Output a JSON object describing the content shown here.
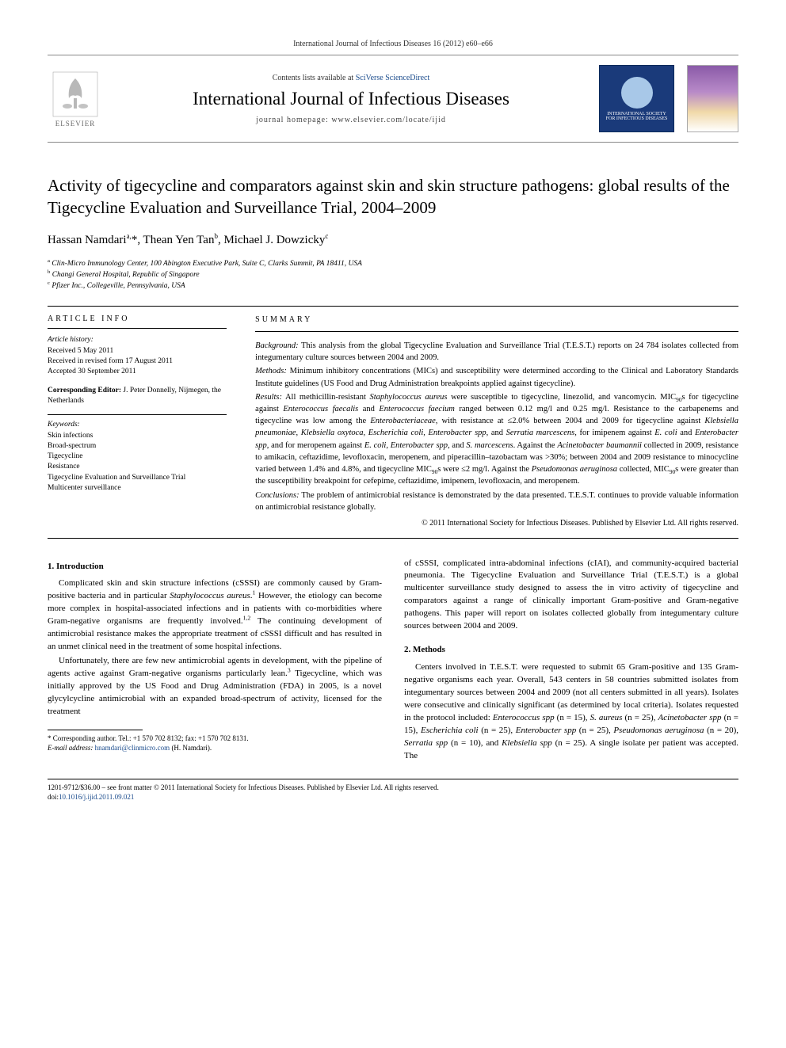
{
  "header": {
    "citation": "International Journal of Infectious Diseases 16 (2012) e60–e66",
    "contents_prefix": "Contents lists available at ",
    "contents_link": "SciVerse ScienceDirect",
    "journal_title": "International Journal of Infectious Diseases",
    "homepage_prefix": "journal homepage: ",
    "homepage_url": "www.elsevier.com/locate/ijid",
    "elsevier_label": "ELSEVIER",
    "society_line1": "INTERNATIONAL SOCIETY",
    "society_line2": "FOR INFECTIOUS DISEASES"
  },
  "title": "Activity of tigecycline and comparators against skin and skin structure pathogens: global results of the Tigecycline Evaluation and Surveillance Trial, 2004–2009",
  "authors_html": "Hassan Namdari<sup>a,</sup>*, Thean Yen Tan<sup>b</sup>, Michael J. Dowzicky<sup>c</sup>",
  "affiliations": [
    "a Clin-Micro Immunology Center, 100 Abington Executive Park, Suite C, Clarks Summit, PA 18411, USA",
    "b Changi General Hospital, Republic of Singapore",
    "c Pfizer Inc., Collegeville, Pennsylvania, USA"
  ],
  "article_info": {
    "heading": "ARTICLE INFO",
    "history_label": "Article history:",
    "history": [
      "Received 5 May 2011",
      "Received in revised form 17 August 2011",
      "Accepted 30 September 2011"
    ],
    "corr_editor_label": "Corresponding Editor:",
    "corr_editor": " J. Peter Donnelly, Nijmegen, the Netherlands",
    "keywords_label": "Keywords:",
    "keywords": [
      "Skin infections",
      "Broad-spectrum",
      "Tigecycline",
      "Resistance",
      "Tigecycline Evaluation and Surveillance Trial",
      "Multicenter surveillance"
    ]
  },
  "summary": {
    "heading": "SUMMARY",
    "background_label": "Background:",
    "background": " This analysis from the global Tigecycline Evaluation and Surveillance Trial (T.E.S.T.) reports on 24 784 isolates collected from integumentary culture sources between 2004 and 2009.",
    "methods_label": "Methods:",
    "methods": " Minimum inhibitory concentrations (MICs) and susceptibility were determined according to the Clinical and Laboratory Standards Institute guidelines (US Food and Drug Administration breakpoints applied against tigecycline).",
    "results_label": "Results:",
    "results_html": " All methicillin-resistant <span class=\"italic\">Staphylococcus aureus</span> were susceptible to tigecycline, linezolid, and vancomycin. MIC<sub>90</sub>s for tigecycline against <span class=\"italic\">Enterococcus faecalis</span> and <span class=\"italic\">Enterococcus faecium</span> ranged between 0.12 mg/l and 0.25 mg/l. Resistance to the carbapenems and tigecycline was low among the <span class=\"italic\">Enterobacteriaceae</span>, with resistance at ≤2.0% between 2004 and 2009 for tigecycline against <span class=\"italic\">Klebsiella pneumoniae</span>, <span class=\"italic\">Klebsiella oxytoca</span>, <span class=\"italic\">Escherichia coli</span>, <span class=\"italic\">Enterobacter spp</span>, and <span class=\"italic\">Serratia marcescens</span>, for imipenem against <span class=\"italic\">E. coli</span> and <span class=\"italic\">Enterobacter spp</span>, and for meropenem against <span class=\"italic\">E. coli</span>, <span class=\"italic\">Enterobacter spp</span>, and <span class=\"italic\">S. marcescens</span>. Against the <span class=\"italic\">Acinetobacter baumannii</span> collected in 2009, resistance to amikacin, ceftazidime, levofloxacin, meropenem, and piperacillin–tazobactam was >30%; between 2004 and 2009 resistance to minocycline varied between 1.4% and 4.8%, and tigecycline MIC<sub>90</sub>s were ≤2 mg/l. Against the <span class=\"italic\">Pseudomonas aeruginosa</span> collected, MIC<sub>90</sub>s were greater than the susceptibility breakpoint for cefepime, ceftazidime, imipenem, levofloxacin, and meropenem.",
    "conclusions_label": "Conclusions:",
    "conclusions": " The problem of antimicrobial resistance is demonstrated by the data presented. T.E.S.T. continues to provide valuable information on antimicrobial resistance globally.",
    "copyright": "© 2011 International Society for Infectious Diseases. Published by Elsevier Ltd. All rights reserved."
  },
  "body": {
    "intro_heading": "1. Introduction",
    "intro_p1_html": "Complicated skin and skin structure infections (cSSSI) are commonly caused by Gram-positive bacteria and in particular <span class=\"italic\">Staphylococcus aureus</span>.<sup>1</sup> However, the etiology can become more complex in hospital-associated infections and in patients with co-morbidities where Gram-negative organisms are frequently involved.<sup>1,2</sup> The continuing development of antimicrobial resistance makes the appropriate treatment of cSSSI difficult and has resulted in an unmet clinical need in the treatment of some hospital infections.",
    "intro_p2_html": "Unfortunately, there are few new antimicrobial agents in development, with the pipeline of agents active against Gram-negative organisms particularly lean.<sup>3</sup> Tigecycline, which was initially approved by the US Food and Drug Administration (FDA) in 2005, is a novel glycylcycline antimicrobial with an expanded broad-spectrum of activity, licensed for the treatment",
    "intro_p2_cont": "of cSSSI, complicated intra-abdominal infections (cIAI), and community-acquired bacterial pneumonia. The Tigecycline Evaluation and Surveillance Trial (T.E.S.T.) is a global multicenter surveillance study designed to assess the in vitro activity of tigecycline and comparators against a range of clinically important Gram-positive and Gram-negative pathogens. This paper will report on isolates collected globally from integumentary culture sources between 2004 and 2009.",
    "methods_heading": "2. Methods",
    "methods_p1_html": "Centers involved in T.E.S.T. were requested to submit 65 Gram-positive and 135 Gram-negative organisms each year. Overall, 543 centers in 58 countries submitted isolates from integumentary sources between 2004 and 2009 (not all centers submitted in all years). Isolates were consecutive and clinically significant (as determined by local criteria). Isolates requested in the protocol included: <span class=\"italic\">Enterococcus spp</span> (n = 15), <span class=\"italic\">S. aureus</span> (n = 25), <span class=\"italic\">Acinetobacter spp</span> (n = 15), <span class=\"italic\">Escherichia coli</span> (n = 25), <span class=\"italic\">Enterobacter spp</span> (n = 25), <span class=\"italic\">Pseudomonas aeruginosa</span> (n = 20), <span class=\"italic\">Serratia spp</span> (n = 10), and <span class=\"italic\">Klebsiella spp</span> (n = 25). A single isolate per patient was accepted. The"
  },
  "footnotes": {
    "corr": "* Corresponding author. Tel.: +1 570 702 8132; fax: +1 570 702 8131.",
    "email_label": "E-mail address: ",
    "email": "hnamdari@clinmicro.com",
    "email_suffix": " (H. Namdari)."
  },
  "footer": {
    "line1": "1201-9712/$36.00 – see front matter © 2011 International Society for Infectious Diseases. Published by Elsevier Ltd. All rights reserved.",
    "doi_prefix": "doi:",
    "doi": "10.1016/j.ijid.2011.09.021"
  },
  "colors": {
    "link": "#1a4b8c",
    "text": "#000000",
    "society_bg": "#1a3a7a"
  }
}
